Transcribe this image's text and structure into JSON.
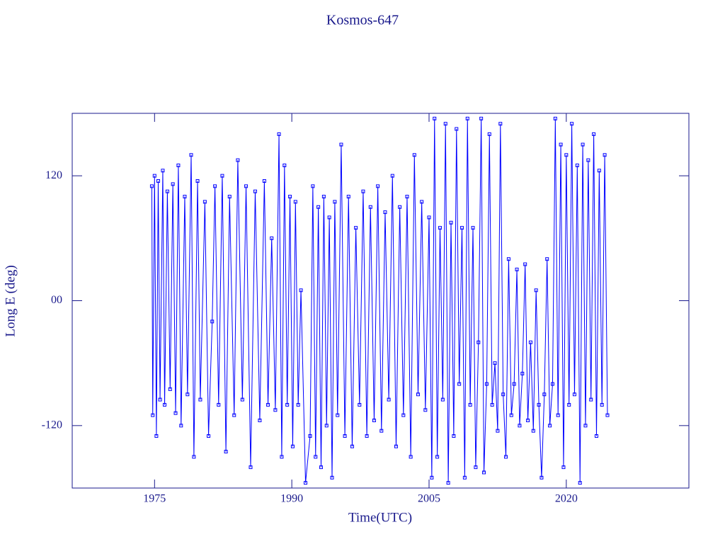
{
  "chart_data": {
    "type": "line",
    "title": "Kosmos-647",
    "x_label": "Time(UTC)",
    "y_label": "Long E (deg)",
    "xlim": [
      1966,
      2033.4
    ],
    "xticks": [
      1975,
      1990,
      2005,
      2020
    ],
    "ylim": [
      -180,
      180
    ],
    "yticks": [
      -120,
      {
        "value": 0,
        "label": "00"
      },
      120
    ],
    "series": [
      {
        "color": "#0000ff",
        "x": [
          1974.7,
          1974.8,
          1975.0,
          1975.2,
          1975.4,
          1975.6,
          1975.9,
          1976.1,
          1976.4,
          1976.7,
          1977.0,
          1977.3,
          1977.6,
          1977.9,
          1978.3,
          1978.6,
          1979.0,
          1979.3,
          1979.7,
          1980.0,
          1980.5,
          1980.9,
          1981.3,
          1981.6,
          1982.0,
          1982.4,
          1982.8,
          1983.2,
          1983.7,
          1984.1,
          1984.6,
          1985.0,
          1985.5,
          1986.0,
          1986.5,
          1987.0,
          1987.4,
          1987.8,
          1988.2,
          1988.6,
          1988.9,
          1989.2,
          1989.5,
          1989.8,
          1990.1,
          1990.4,
          1990.7,
          1991.0,
          1991.5,
          1992.0,
          1992.3,
          1992.6,
          1992.9,
          1993.2,
          1993.5,
          1993.8,
          1994.1,
          1994.4,
          1994.7,
          1995.0,
          1995.4,
          1995.8,
          1996.2,
          1996.6,
          1997.0,
          1997.4,
          1997.8,
          1998.2,
          1998.6,
          1999.0,
          1999.4,
          1999.8,
          2000.2,
          2000.6,
          2001.0,
          2001.4,
          2001.8,
          2002.2,
          2002.6,
          2003.0,
          2003.4,
          2003.8,
          2004.2,
          2004.6,
          2005.0,
          2005.3,
          2005.6,
          2005.9,
          2006.2,
          2006.5,
          2006.8,
          2007.1,
          2007.4,
          2007.7,
          2008.0,
          2008.3,
          2008.6,
          2008.9,
          2009.2,
          2009.5,
          2009.8,
          2010.1,
          2010.4,
          2010.7,
          2011.0,
          2011.3,
          2011.6,
          2011.9,
          2012.2,
          2012.5,
          2012.8,
          2013.1,
          2013.4,
          2013.7,
          2014.0,
          2014.3,
          2014.6,
          2014.9,
          2015.2,
          2015.5,
          2015.8,
          2016.1,
          2016.4,
          2016.7,
          2017.0,
          2017.3,
          2017.6,
          2017.9,
          2018.2,
          2018.5,
          2018.8,
          2019.1,
          2019.4,
          2019.7,
          2020.0,
          2020.3,
          2020.6,
          2020.9,
          2021.2,
          2021.5,
          2021.8,
          2022.1,
          2022.4,
          2022.7,
          2023.0,
          2023.3,
          2023.6,
          2023.9,
          2024.2,
          2024.5
        ],
        "values": [
          110,
          -110,
          120,
          -130,
          115,
          -95,
          125,
          -100,
          105,
          -85,
          112,
          -108,
          130,
          -120,
          100,
          -90,
          140,
          -150,
          115,
          -95,
          95,
          -130,
          -20,
          110,
          -100,
          120,
          -145,
          100,
          -110,
          135,
          -95,
          110,
          -160,
          105,
          -115,
          115,
          -100,
          60,
          -105,
          160,
          -150,
          130,
          -100,
          100,
          -140,
          95,
          -100,
          10,
          -175,
          -130,
          110,
          -150,
          90,
          -160,
          100,
          -120,
          80,
          -170,
          95,
          -110,
          150,
          -130,
          100,
          -140,
          70,
          -100,
          105,
          -130,
          90,
          -115,
          110,
          -125,
          85,
          -95,
          120,
          -140,
          90,
          -110,
          100,
          -150,
          140,
          -90,
          95,
          -105,
          80,
          -170,
          175,
          -150,
          70,
          -95,
          170,
          -175,
          75,
          -130,
          165,
          -80,
          70,
          -170,
          175,
          -100,
          70,
          -160,
          -40,
          175,
          -165,
          -80,
          160,
          -100,
          -60,
          -125,
          170,
          -90,
          -150,
          40,
          -110,
          -80,
          30,
          -120,
          -70,
          35,
          -115,
          -40,
          -125,
          10,
          -100,
          -170,
          -90,
          40,
          -120,
          -80,
          175,
          -110,
          150,
          -160,
          140,
          -100,
          170,
          -90,
          130,
          -175,
          150,
          -120,
          135,
          -95,
          160,
          -130,
          125,
          -100,
          140,
          -110
        ]
      }
    ]
  }
}
